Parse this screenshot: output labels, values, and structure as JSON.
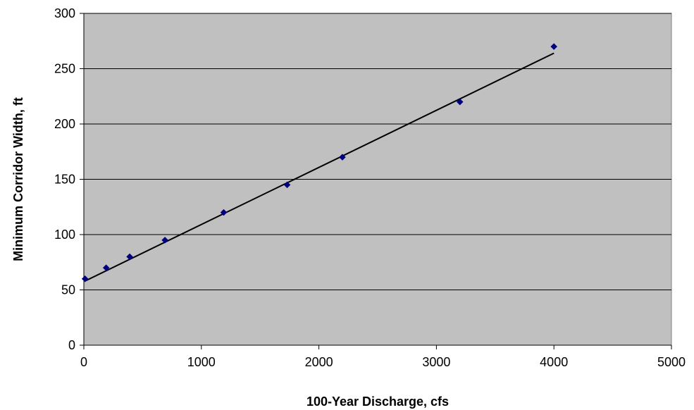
{
  "chart_data": {
    "type": "scatter",
    "title": "",
    "xlabel": "100-Year Discharge, cfs",
    "ylabel": "Minimum Corridor Width, ft",
    "xlim": [
      0,
      5000
    ],
    "ylim": [
      0,
      300
    ],
    "xticks": [
      0,
      1000,
      2000,
      3000,
      4000,
      5000
    ],
    "yticks": [
      0,
      50,
      100,
      150,
      200,
      250,
      300
    ],
    "x_tick_labels": [
      "0",
      "1000",
      "2000",
      "3000",
      "4000",
      "5000"
    ],
    "y_tick_labels": [
      "0",
      "50",
      "100",
      "150",
      "200",
      "250",
      "300"
    ],
    "grid": "horizontal",
    "legend": "none",
    "series": [
      {
        "marker": "diamond",
        "x": [
          10,
          190,
          390,
          690,
          1190,
          1730,
          2200,
          3200,
          4000
        ],
        "y": [
          60,
          70,
          80,
          95,
          120,
          145,
          170,
          220,
          270
        ]
      }
    ],
    "trendline": {
      "type": "linear",
      "x": [
        10,
        4000
      ],
      "y": [
        58,
        264
      ]
    },
    "colors": {
      "plot_background": "#c0c0c0",
      "marker": "#000080",
      "trendline": "#000000",
      "gridline": "#000000"
    }
  }
}
